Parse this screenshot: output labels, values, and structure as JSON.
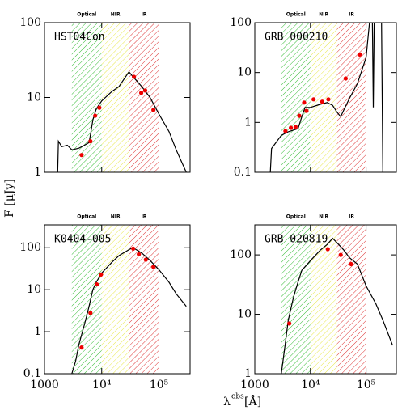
{
  "axis_labels": {
    "y": "F [μJy]",
    "x": {
      "symbol": "λ",
      "sup": "obs",
      "unit": "[Å]"
    }
  },
  "chart_data": [
    {
      "type": "scatter",
      "label": "HST04Con",
      "xlog": true,
      "ylog": true,
      "xlim": [
        1000,
        350000
      ],
      "ylim": [
        1,
        100
      ],
      "xticks": [
        1000,
        10000,
        100000
      ],
      "xticklabels": false,
      "yticks": [
        1,
        10,
        100
      ],
      "bands": [
        {
          "label": "Optical",
          "range": [
            3000,
            10000
          ],
          "color": "#33bb33"
        },
        {
          "label": "NIR",
          "range": [
            10000,
            30000
          ],
          "color": "#e8e84a"
        },
        {
          "label": "IR",
          "range": [
            30000,
            100000
          ],
          "color": "#dd3333"
        }
      ],
      "model": {
        "color": "#000000",
        "x": [
          1700,
          1750,
          2000,
          2500,
          3000,
          4000,
          5000,
          6000,
          6500,
          7000,
          8000,
          10000,
          15000,
          20000,
          25000,
          30000,
          35000,
          40000,
          50000,
          70000,
          100000,
          150000,
          200000,
          300000
        ],
        "y": [
          1,
          2.6,
          2.2,
          2.3,
          2.0,
          2.1,
          2.3,
          2.5,
          3.5,
          5,
          7,
          9,
          12,
          14,
          18,
          22,
          19,
          17,
          14,
          10,
          6,
          3.5,
          2,
          1
        ]
      },
      "points": {
        "color": "#ee0000",
        "x": [
          4450,
          6350,
          7700,
          9100,
          36600,
          49000,
          57500,
          80000
        ],
        "y": [
          1.7,
          2.6,
          5.7,
          7.3,
          18.9,
          11.5,
          12.4,
          6.8
        ]
      }
    },
    {
      "type": "scatter",
      "label": "GRB 000210",
      "xlog": true,
      "ylog": true,
      "xlim": [
        1000,
        350000
      ],
      "ylim": [
        0.1,
        100
      ],
      "xticks": [
        1000,
        10000,
        100000
      ],
      "xticklabels": false,
      "yticks": [
        0.1,
        1,
        10,
        100
      ],
      "bands": [
        {
          "label": "Optical",
          "range": [
            3000,
            10000
          ],
          "color": "#33bb33"
        },
        {
          "label": "NIR",
          "range": [
            10000,
            30000
          ],
          "color": "#e8e84a"
        },
        {
          "label": "IR",
          "range": [
            30000,
            100000
          ],
          "color": "#dd3333"
        }
      ],
      "model": {
        "color": "#000000",
        "x": [
          1900,
          2000,
          3000,
          4000,
          6000,
          7000,
          8000,
          10000,
          15000,
          20000,
          25000,
          30000,
          35000,
          40000,
          50000,
          70000,
          100000,
          115000,
          null,
          130000,
          135000,
          140000,
          null,
          190000,
          200000
        ],
        "y": [
          0.1,
          0.3,
          0.55,
          0.65,
          0.75,
          1.3,
          2.0,
          2.0,
          2.3,
          2.5,
          2.2,
          1.6,
          1.3,
          1.8,
          3,
          6,
          20,
          100,
          null,
          100,
          2,
          100,
          null,
          100,
          0.1
        ]
      },
      "points": {
        "color": "#ee0000",
        "x": [
          3550,
          4450,
          5400,
          6300,
          7700,
          8500,
          11400,
          16300,
          21000,
          43000,
          77000
        ],
        "y": [
          0.67,
          0.78,
          0.81,
          1.36,
          2.5,
          1.7,
          2.9,
          2.6,
          2.9,
          7.6,
          23
        ]
      }
    },
    {
      "type": "scatter",
      "label": "K0404-005",
      "xlog": true,
      "ylog": true,
      "xlim": [
        1000,
        350000
      ],
      "ylim": [
        0.1,
        350
      ],
      "xticks": [
        1000,
        {
          "value": 10000,
          "label": "10⁴"
        },
        {
          "value": 100000,
          "label": "10⁵"
        }
      ],
      "xticklabels": true,
      "yticks": [
        0.1,
        1,
        10,
        100
      ],
      "bands": [
        {
          "label": "Optical",
          "range": [
            3000,
            10000
          ],
          "color": "#33bb33"
        },
        {
          "label": "NIR",
          "range": [
            10000,
            30000
          ],
          "color": "#e8e84a"
        },
        {
          "label": "IR",
          "range": [
            30000,
            100000
          ],
          "color": "#dd3333"
        }
      ],
      "model": {
        "color": "#000000",
        "x": [
          3000,
          3500,
          4000,
          5000,
          6000,
          7000,
          8000,
          10000,
          15000,
          20000,
          30000,
          35000,
          40000,
          50000,
          70000,
          100000,
          150000,
          200000,
          300000
        ],
        "y": [
          0.1,
          0.2,
          0.5,
          1.5,
          4,
          10,
          15,
          25,
          45,
          65,
          90,
          100,
          90,
          75,
          50,
          30,
          15,
          8,
          4
        ]
      },
      "points": {
        "color": "#ee0000",
        "x": [
          4450,
          6350,
          8200,
          9700,
          35500,
          44500,
          59000,
          80000
        ],
        "y": [
          0.42,
          2.8,
          13.4,
          23,
          95,
          70,
          52,
          35
        ]
      }
    },
    {
      "type": "scatter",
      "label": "GRB 020819",
      "xlog": true,
      "ylog": true,
      "xlim": [
        1000,
        350000
      ],
      "ylim": [
        1,
        320
      ],
      "xticks": [
        1000,
        {
          "value": 10000,
          "label": "10⁴"
        },
        {
          "value": 100000,
          "label": "10⁵"
        }
      ],
      "xticklabels": true,
      "yticks": [
        1,
        10,
        100
      ],
      "bands": [
        {
          "label": "Optical",
          "range": [
            3000,
            10000
          ],
          "color": "#33bb33"
        },
        {
          "label": "NIR",
          "range": [
            10000,
            30000
          ],
          "color": "#e8e84a"
        },
        {
          "label": "IR",
          "range": [
            30000,
            100000
          ],
          "color": "#dd3333"
        }
      ],
      "model": {
        "color": "#000000",
        "x": [
          3000,
          3500,
          4000,
          5000,
          6000,
          7000,
          10000,
          15000,
          20000,
          25000,
          30000,
          40000,
          50000,
          70000,
          100000,
          150000,
          200000,
          300000
        ],
        "y": [
          1,
          3,
          8,
          20,
          35,
          55,
          80,
          120,
          150,
          190,
          160,
          120,
          90,
          70,
          30,
          15,
          8,
          3
        ]
      },
      "points": {
        "color": "#ee0000",
        "x": [
          4170,
          20500,
          35000,
          54000
        ],
        "y": [
          7,
          125,
          100,
          70
        ]
      }
    }
  ]
}
